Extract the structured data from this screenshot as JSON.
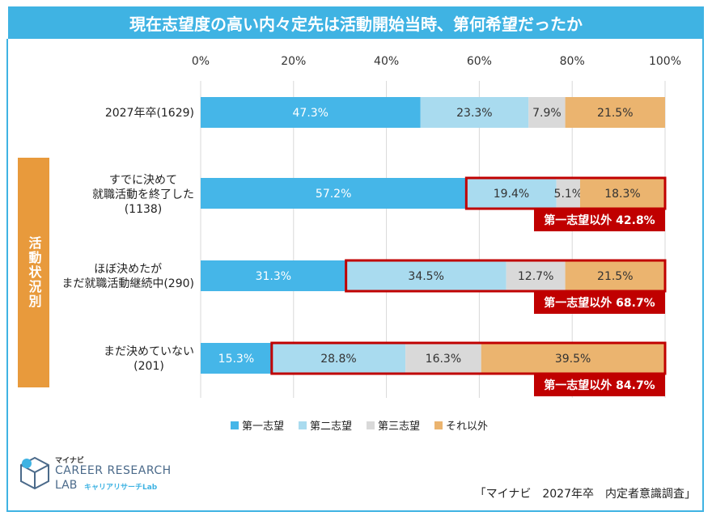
{
  "title": "現在志望度の高い内々定先は活動開始当時、第何希望だったか",
  "side_label": "活動状況別",
  "rows": [
    {
      "lines": [
        "2027年卒(1629)"
      ]
    },
    {
      "lines": [
        "すでに決めて",
        "就職活動を終了した",
        "(1138)"
      ]
    },
    {
      "lines": [
        "ほぼ決めたが",
        "まだ就職活動継続中(290)"
      ]
    },
    {
      "lines": [
        "まだ決めていない",
        "(201)"
      ]
    }
  ],
  "legend": [
    {
      "name": "第一志望",
      "color": "#45b6e8"
    },
    {
      "name": "第二志望",
      "color": "#a9dbef"
    },
    {
      "name": "第三志望",
      "color": "#d9d9d9"
    },
    {
      "name": "それ以外",
      "color": "#ebb46f"
    }
  ],
  "highlight_labels": [
    "",
    "第一志望以外 42.8%",
    "第一志望以外 68.7%",
    "第一志望以外 84.7%"
  ],
  "highlight_color": "#c00000",
  "logo": {
    "top": "マイナビ",
    "main": "CAREER RESEARCH",
    "sub": "LAB",
    "jp": "キャリアリサーチLab"
  },
  "source": "「マイナビ　2027年卒　内定者意識調査」",
  "chart_data": {
    "type": "bar",
    "orientation": "horizontal",
    "stacked": true,
    "categories": [
      "2027年卒(1629)",
      "すでに決めて就職活動を終了した(1138)",
      "ほぼ決めたがまだ就職活動継続中(290)",
      "まだ決めていない(201)"
    ],
    "series": [
      {
        "name": "第一志望",
        "values": [
          47.3,
          57.2,
          31.3,
          15.3
        ],
        "labels": [
          "47.3%",
          "57.2%",
          "31.3%",
          "15.3%"
        ]
      },
      {
        "name": "第二志望",
        "values": [
          23.3,
          19.4,
          34.5,
          28.8
        ],
        "labels": [
          "23.3%",
          "19.4%",
          "34.5%",
          "28.8%"
        ]
      },
      {
        "name": "第三志望",
        "values": [
          7.9,
          5.1,
          12.7,
          16.3
        ],
        "labels": [
          "7.9%",
          "5.1%",
          "12.7%",
          "16.3%"
        ]
      },
      {
        "name": "それ以外",
        "values": [
          21.5,
          18.3,
          21.5,
          39.5
        ],
        "labels": [
          "21.5%",
          "18.3%",
          "21.5%",
          "39.5%"
        ]
      }
    ],
    "x_ticks": [
      "0%",
      "20%",
      "40%",
      "60%",
      "80%",
      "100%"
    ],
    "xlim": [
      0,
      100
    ],
    "grid": true,
    "legend_position": "bottom"
  }
}
